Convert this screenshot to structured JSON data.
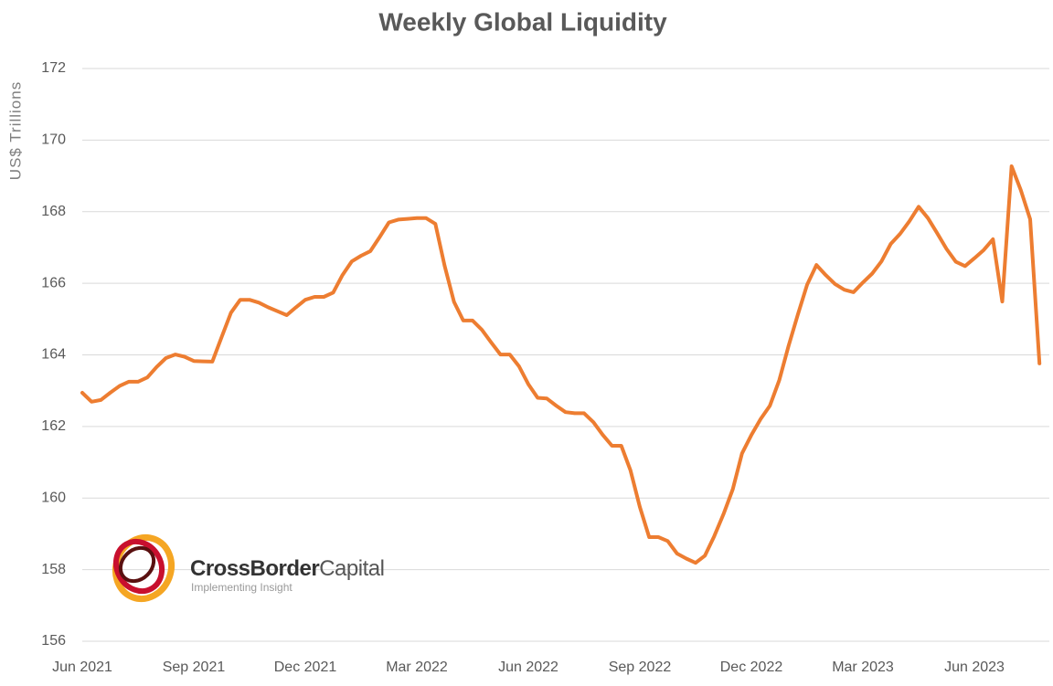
{
  "chart_data": {
    "type": "line",
    "title": "Weekly Global  Liquidity",
    "y_label": "US$ Trillions",
    "categories": [
      "Jun 2021",
      null,
      null,
      null,
      null,
      null,
      null,
      null,
      null,
      null,
      null,
      null,
      "Sep 2021",
      null,
      null,
      null,
      null,
      null,
      null,
      null,
      null,
      null,
      null,
      null,
      "Dec 2021",
      null,
      null,
      null,
      null,
      null,
      null,
      null,
      null,
      null,
      null,
      null,
      "Mar 2022",
      null,
      null,
      null,
      null,
      null,
      null,
      null,
      null,
      null,
      null,
      null,
      "Jun 2022",
      null,
      null,
      null,
      null,
      null,
      null,
      null,
      null,
      null,
      null,
      null,
      "Sep 2022",
      null,
      null,
      null,
      null,
      null,
      null,
      null,
      null,
      null,
      null,
      null,
      "Dec 2022",
      null,
      null,
      null,
      null,
      null,
      null,
      null,
      null,
      null,
      null,
      null,
      "Mar 2023",
      null,
      null,
      null,
      null,
      null,
      null,
      null,
      null,
      null,
      null,
      null,
      "Jun 2023",
      null,
      null,
      null,
      null,
      null,
      null,
      null
    ],
    "series": [
      {
        "name": "Weekly Global Liquidity",
        "color": "#ed7d31",
        "values": [
          162.94,
          162.69,
          162.74,
          162.94,
          163.13,
          163.25,
          163.25,
          163.37,
          163.66,
          163.91,
          164.01,
          163.95,
          163.83,
          163.82,
          163.81,
          164.5,
          165.18,
          165.54,
          165.54,
          165.46,
          165.33,
          165.22,
          165.11,
          165.33,
          165.54,
          165.62,
          165.62,
          165.74,
          166.23,
          166.61,
          166.77,
          166.9,
          167.29,
          167.7,
          167.78,
          167.8,
          167.82,
          167.82,
          167.66,
          166.48,
          165.48,
          164.96,
          164.96,
          164.7,
          164.35,
          164.01,
          164.01,
          163.68,
          163.18,
          162.8,
          162.78,
          162.58,
          162.4,
          162.37,
          162.37,
          162.12,
          161.77,
          161.46,
          161.46,
          160.77,
          159.75,
          158.91,
          158.91,
          158.8,
          158.45,
          158.31,
          158.19,
          158.39,
          158.93,
          159.55,
          160.25,
          161.25,
          161.76,
          162.21,
          162.58,
          163.29,
          164.25,
          165.12,
          165.96,
          166.51,
          166.23,
          165.98,
          165.82,
          165.75,
          166.02,
          166.27,
          166.61,
          167.1,
          167.38,
          167.73,
          168.14,
          167.82,
          167.4,
          166.96,
          166.6,
          166.48,
          166.7,
          166.93,
          167.23,
          165.49,
          169.27,
          168.6,
          167.79,
          163.76
        ]
      }
    ],
    "ylim": [
      156,
      172
    ],
    "yticks": [
      156,
      158,
      160,
      162,
      164,
      166,
      168,
      170,
      172
    ],
    "grid": true,
    "logo": {
      "brand": "CrossBorder",
      "brand_suffix": "Capital",
      "tagline": "Implementing Insight"
    }
  }
}
